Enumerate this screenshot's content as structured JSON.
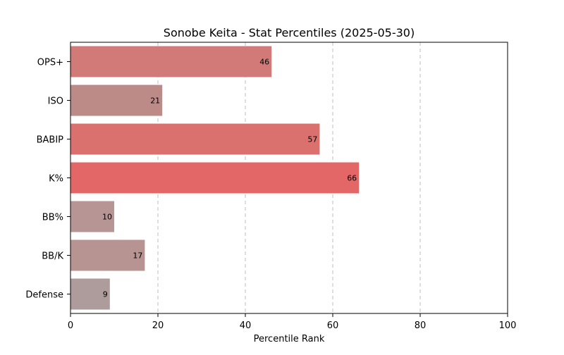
{
  "chart_data": {
    "type": "bar",
    "orientation": "horizontal",
    "title": "Sonobe Keita - Stat Percentiles (2025-05-30)",
    "xlabel": "Percentile Rank",
    "ylabel": "",
    "xlim": [
      0,
      100
    ],
    "xticks": [
      "0",
      "20",
      "40",
      "60",
      "80",
      "100"
    ],
    "grid": "vertical dashed",
    "categories": [
      "OPS+",
      "ISO",
      "BABIP",
      "K%",
      "BB%",
      "BB/K",
      "Defense"
    ],
    "values": [
      46,
      21,
      57,
      66,
      10,
      17,
      9
    ],
    "colors": [
      "#d17a78",
      "#bc8b88",
      "#db716f",
      "#e46767",
      "#b69594",
      "#b79391",
      "#ad9c9b"
    ]
  }
}
